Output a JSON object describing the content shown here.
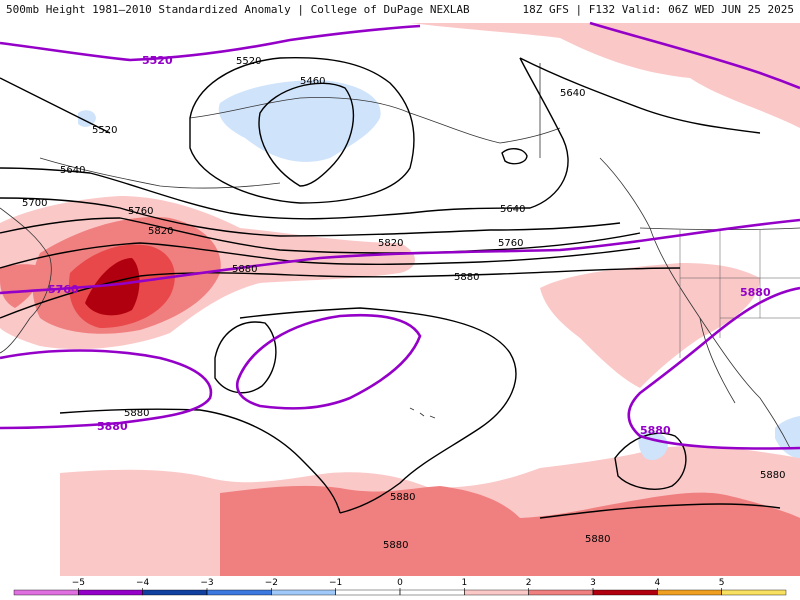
{
  "header": {
    "title_left": "500mb Height 1981–2010 Standardized Anomaly | College of DuPage NEXLAB",
    "title_right": "18Z GFS | F132 Valid: 06Z WED JUN 25 2025"
  },
  "colors": {
    "anom_neg_05_1": "#cfe3fb",
    "anom_pos_1_2": "#fbc8c8",
    "anom_pos_2_3": "#f08080",
    "anom_pos_3_4": "#e8484a",
    "anom_pos_4_5": "#b00010",
    "climo_contour": "#9400c8",
    "height_contour": "#000000"
  },
  "height_labels": [
    "5460",
    "5520",
    "5520",
    "5640",
    "5640",
    "5640",
    "5700",
    "5760",
    "5760",
    "5820",
    "5820",
    "5880",
    "5880",
    "5880",
    "5880",
    "5880",
    "5880",
    "5880"
  ],
  "climo_labels": [
    "5520",
    "5760",
    "5880",
    "5880",
    "5880"
  ],
  "colorbar": {
    "ticks": [
      "−5",
      "−4",
      "−3",
      "−2",
      "−1",
      "0",
      "1",
      "2",
      "3",
      "4",
      "5"
    ],
    "colors": [
      "#e070e0",
      "#9400c8",
      "#1040a0",
      "#3c78e0",
      "#a0c8f8",
      "#ffffff",
      "#ffffff",
      "#fbc8c8",
      "#f08080",
      "#b00010",
      "#f0a020",
      "#f8e060"
    ]
  }
}
